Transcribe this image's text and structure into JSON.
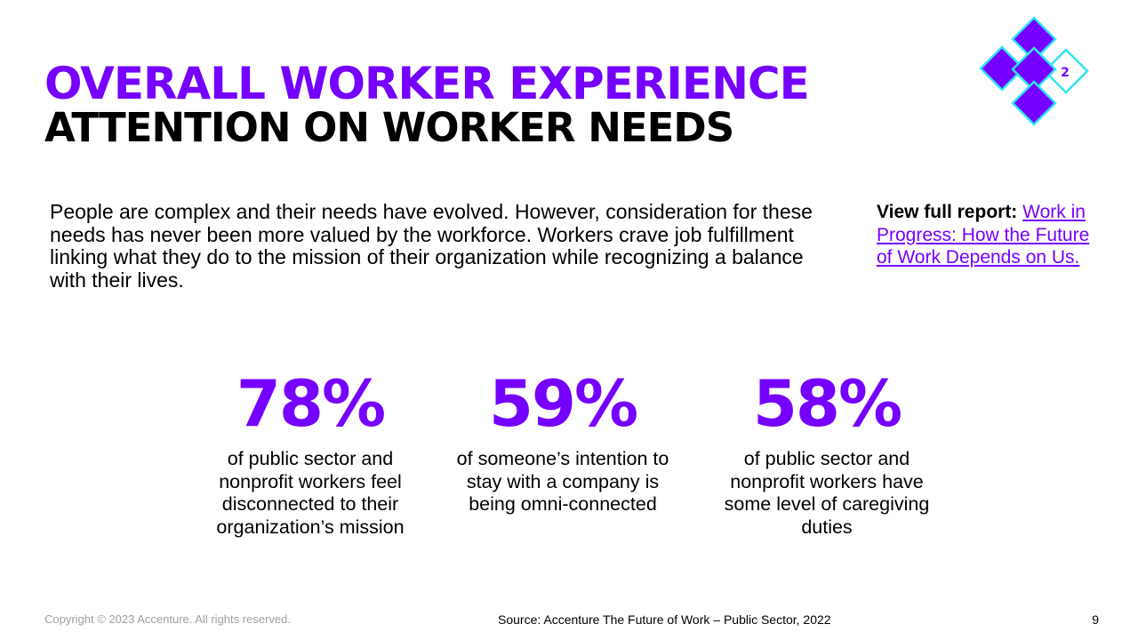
{
  "title": {
    "line1": "OVERALL WORKER EXPERIENCE",
    "line2": "ATTENTION ON WORKER NEEDS"
  },
  "logo": {
    "badge": "2"
  },
  "intro": "People are complex and their needs have evolved. However, consideration for these needs has never been more valued by the workforce. Workers crave job fulfillment linking what they do to the mission of their organization while recognizing a balance with their lives.",
  "report": {
    "label": "View full report:",
    "link": "Work in Progress: How the Future of Work Depends on Us."
  },
  "stats": [
    {
      "value": "78%",
      "desc": "of public sector and nonprofit workers feel disconnected to their organization’s mission"
    },
    {
      "value": "59%",
      "desc": "of someone’s intention to stay with a company is being omni-connected"
    },
    {
      "value": "58%",
      "desc": "of public sector and nonprofit workers have some level of caregiving duties"
    }
  ],
  "footer": {
    "copyright": "Copyright © 2023 Accenture. All rights reserved.",
    "source": "Source: Accenture The Future of Work – Public Sector, 2022",
    "page": "9"
  },
  "colors": {
    "accent": "#7500ff",
    "cyan": "#2ee6f0"
  }
}
